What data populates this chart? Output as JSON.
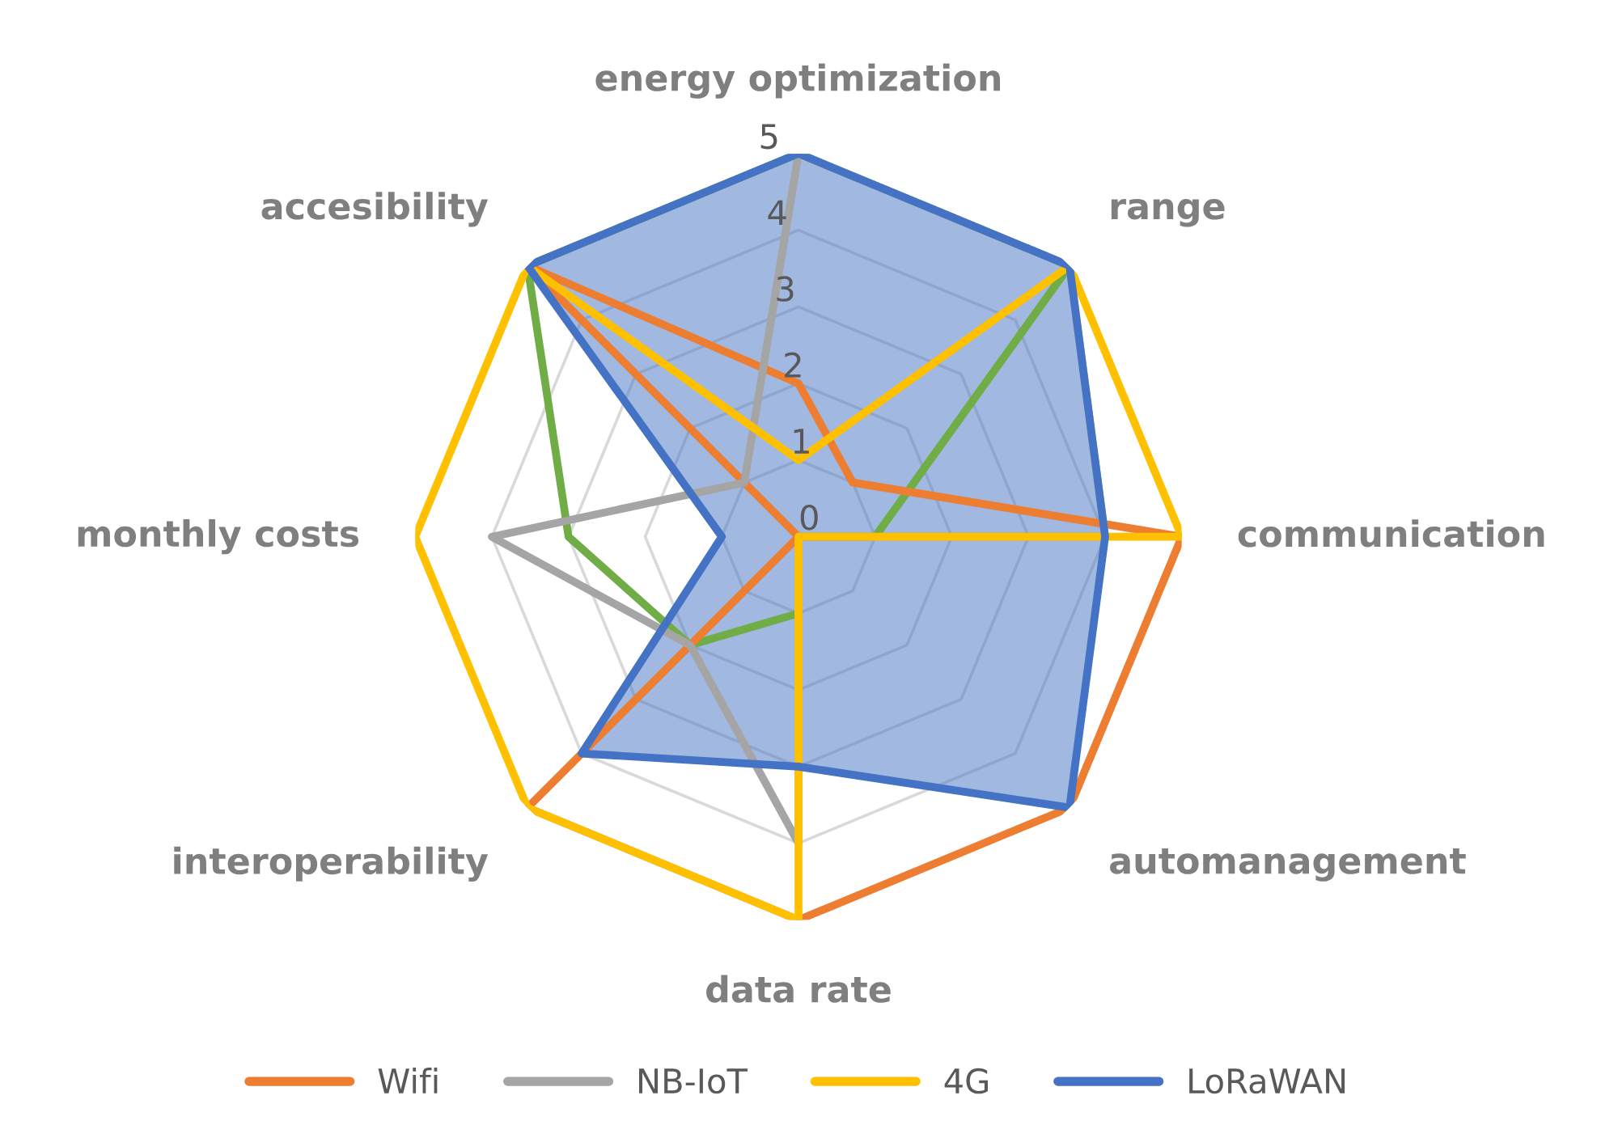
{
  "chart_data": {
    "type": "radar",
    "categories": [
      "energy optimization",
      "range",
      "communication",
      "automanagement",
      "data rate",
      "interoperability",
      "monthly costs",
      "accesibility"
    ],
    "ylim": [
      0,
      5
    ],
    "yticks": [
      0,
      1,
      2,
      3,
      4,
      5
    ],
    "grid": true,
    "legend": "bottom",
    "series": [
      {
        "color": "#70ad47",
        "values": [
          5,
          5,
          1,
          0,
          1,
          2,
          3,
          5
        ]
      },
      {
        "name": "Wifi",
        "color": "#ed7d31",
        "values": [
          2,
          1,
          5,
          5,
          5,
          5,
          0,
          5
        ]
      },
      {
        "name": "NB-IoT",
        "color": "#a5a5a5",
        "values": [
          5,
          5,
          4,
          0,
          4,
          2,
          4,
          1
        ]
      },
      {
        "name": "4G",
        "color": "#ffc000",
        "values": [
          1,
          5,
          5,
          0,
          5,
          5,
          5,
          5
        ]
      },
      {
        "name": "LoRaWAN",
        "color": "#4472c4",
        "type": "area",
        "values": [
          5,
          5,
          4,
          5,
          3,
          4,
          1,
          5
        ]
      }
    ]
  }
}
